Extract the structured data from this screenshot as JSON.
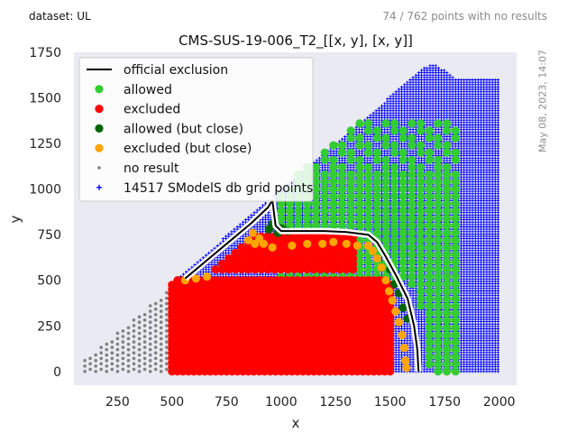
{
  "header": {
    "dataset_label": "dataset: UL",
    "no_result_summary": "74 / 762 points with no results",
    "timestamp": "May 08, 2023, 14:07"
  },
  "chart_data": {
    "type": "scatter",
    "title": "CMS-SUS-19-006_T2_[[x, y], [x, y]]",
    "xlabel": "x",
    "ylabel": "y",
    "xlim": [
      50,
      2080
    ],
    "ylim": [
      -75,
      1750
    ],
    "xticks": [
      250,
      500,
      750,
      1000,
      1250,
      1500,
      1750,
      2000
    ],
    "yticks": [
      0,
      250,
      500,
      750,
      1000,
      1250,
      1500,
      1750
    ],
    "grid": false,
    "legend_position": "top-left",
    "colors": {
      "background": "#eaeaf2",
      "allowed": "#32cd32",
      "excluded": "#ff0000",
      "allowed_close": "#006400",
      "excluded_close": "#ffa500",
      "no_result": "#808080",
      "grid_points": "#0000ff",
      "exclusion_line": "#000000"
    },
    "legend": [
      {
        "key": "exclusion",
        "label": "official exclusion"
      },
      {
        "key": "allowed",
        "label": "allowed"
      },
      {
        "key": "excluded",
        "label": "excluded"
      },
      {
        "key": "allowed_close",
        "label": "allowed (but close)"
      },
      {
        "key": "excluded_close",
        "label": "excluded (but close)"
      },
      {
        "key": "no_result",
        "label": "no result"
      },
      {
        "key": "grid_points",
        "label": "14517 SModelS db grid points"
      }
    ],
    "official_exclusion": [
      [
        560,
        510
      ],
      [
        660,
        610
      ],
      [
        760,
        710
      ],
      [
        860,
        810
      ],
      [
        940,
        900
      ],
      [
        960,
        940
      ],
      [
        975,
        800
      ],
      [
        1000,
        770
      ],
      [
        1100,
        770
      ],
      [
        1200,
        770
      ],
      [
        1300,
        765
      ],
      [
        1400,
        750
      ],
      [
        1440,
        710
      ],
      [
        1480,
        630
      ],
      [
        1530,
        520
      ],
      [
        1580,
        400
      ],
      [
        1610,
        250
      ],
      [
        1625,
        120
      ],
      [
        1630,
        0
      ]
    ],
    "grid_region": [
      [
        500,
        0
      ],
      [
        2000,
        0
      ],
      [
        2000,
        1600
      ],
      [
        1800,
        1610
      ],
      [
        1700,
        1690
      ],
      [
        1650,
        1660
      ],
      [
        500,
        490
      ]
    ],
    "no_result_region": {
      "x_range": [
        100,
        500
      ],
      "y_range": [
        0,
        480
      ],
      "diagonal_offset": 40
    },
    "allowed_region": {
      "x_range": [
        1000,
        1800
      ],
      "y_range": [
        0,
        1380
      ],
      "step": 40
    },
    "excluded_region": {
      "x_range": [
        500,
        1500
      ],
      "y_range": [
        0,
        540
      ],
      "step": 25
    },
    "series_points": {
      "allowed_close": [
        [
          945,
          780
        ],
        [
          960,
          810
        ],
        [
          985,
          760
        ],
        [
          1000,
          785
        ],
        [
          1030,
          770
        ],
        [
          1500,
          560
        ],
        [
          1520,
          480
        ],
        [
          1540,
          430
        ],
        [
          1560,
          350
        ],
        [
          1580,
          290
        ]
      ],
      "excluded_close": [
        [
          850,
          720
        ],
        [
          870,
          760
        ],
        [
          880,
          700
        ],
        [
          900,
          730
        ],
        [
          920,
          700
        ],
        [
          960,
          680
        ],
        [
          1050,
          690
        ],
        [
          1120,
          700
        ],
        [
          1190,
          700
        ],
        [
          1240,
          710
        ],
        [
          1300,
          700
        ],
        [
          1350,
          690
        ],
        [
          1400,
          690
        ],
        [
          1420,
          660
        ],
        [
          1440,
          620
        ],
        [
          1460,
          570
        ],
        [
          1480,
          500
        ],
        [
          1495,
          440
        ],
        [
          1510,
          390
        ],
        [
          1525,
          330
        ],
        [
          1540,
          270
        ],
        [
          1555,
          200
        ],
        [
          1565,
          130
        ],
        [
          1570,
          60
        ],
        [
          1575,
          20
        ],
        [
          560,
          500
        ],
        [
          610,
          510
        ],
        [
          660,
          520
        ]
      ]
    }
  }
}
